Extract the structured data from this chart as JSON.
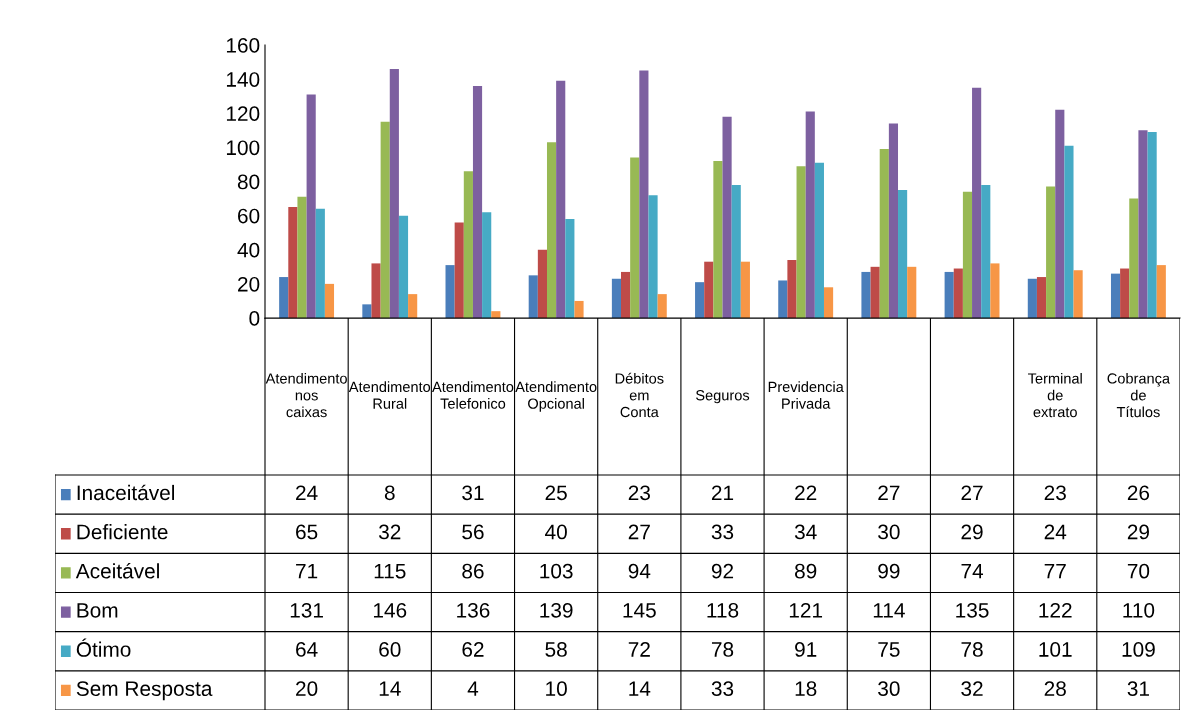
{
  "chart_data": {
    "type": "bar",
    "categories": [
      "Atendimento nos caixas",
      "Atendimento Rural",
      "Atendimento Telefonico",
      "Atendimento Opcional",
      "Débitos em Conta",
      "Seguros",
      "Previdencia Privada",
      null,
      null,
      "Terminal de extrato",
      "Cobrança de Títulos"
    ],
    "series": [
      {
        "name": "Inaceitável",
        "color": "#4a7ebb",
        "values": [
          24,
          8,
          31,
          25,
          23,
          21,
          22,
          27,
          27,
          23,
          26
        ]
      },
      {
        "name": "Deficiente",
        "color": "#be4b48",
        "values": [
          65,
          32,
          56,
          40,
          27,
          33,
          34,
          30,
          29,
          24,
          29
        ]
      },
      {
        "name": "Aceitável",
        "color": "#98b954",
        "values": [
          71,
          115,
          86,
          103,
          94,
          92,
          89,
          99,
          74,
          77,
          70
        ]
      },
      {
        "name": "Bom",
        "color": "#7d60a0",
        "values": [
          131,
          146,
          136,
          139,
          145,
          118,
          121,
          114,
          135,
          122,
          110
        ]
      },
      {
        "name": "Ótimo",
        "color": "#46aac5",
        "values": [
          64,
          60,
          62,
          58,
          72,
          78,
          91,
          75,
          78,
          101,
          109
        ]
      },
      {
        "name": "Sem Resposta",
        "color": "#f79646",
        "values": [
          20,
          14,
          4,
          10,
          14,
          33,
          18,
          30,
          32,
          28,
          31
        ]
      }
    ],
    "ylim": [
      0,
      160
    ],
    "yticks": [
      0,
      20,
      40,
      60,
      80,
      100,
      120,
      140,
      160
    ],
    "grid": false,
    "legend": "bottom",
    "data_labels": true
  }
}
